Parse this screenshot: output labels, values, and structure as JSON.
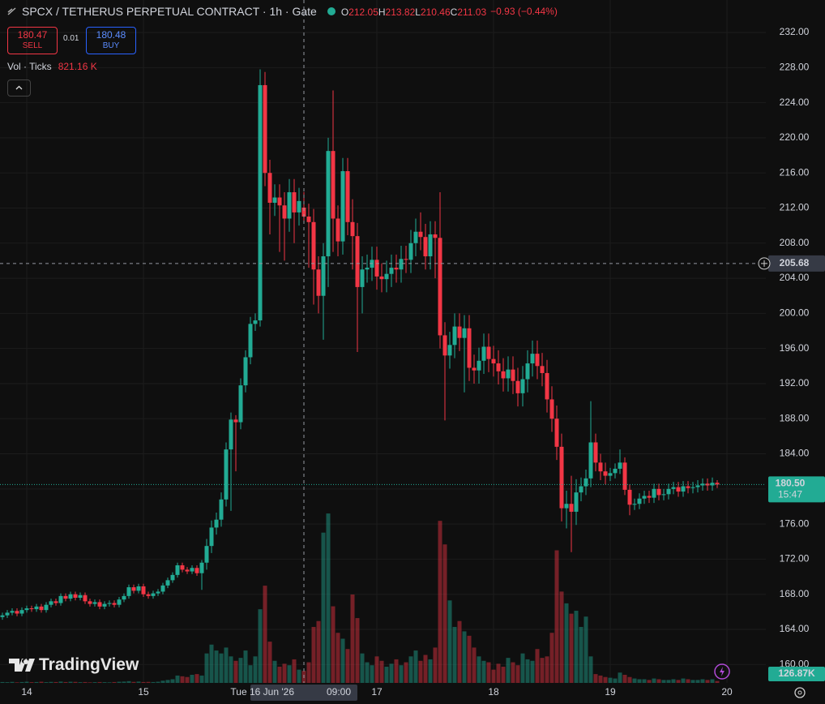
{
  "header": {
    "symbol": "SPCX / TETHERUS PERPETUAL CONTRACT · 1h · Gate",
    "ohlc_keys": [
      "O",
      "H",
      "L",
      "C"
    ],
    "change": "−0.93 (−0.44%)"
  },
  "trade": {
    "sell_price": "180.47",
    "sell": "SELL",
    "spread": "0.01",
    "buy_price": "180.48",
    "buy": "BUY"
  },
  "volume_title": "Vol · Ticks",
  "brand": "TradingView",
  "chart_data": {
    "type": "candlestick",
    "x": [
      -5,
      -4,
      -3,
      -2,
      -1,
      0,
      1,
      2,
      3,
      4,
      5,
      6,
      7,
      8,
      9,
      10,
      11,
      12,
      13,
      14,
      15,
      16,
      17,
      18,
      19,
      20,
      21,
      22,
      23,
      24,
      25,
      26,
      27,
      28,
      29,
      30,
      31,
      32,
      33,
      34,
      35,
      36,
      37,
      38,
      39,
      40,
      41,
      42,
      43,
      44,
      45,
      46,
      47,
      48,
      49,
      50,
      51,
      52,
      53,
      54,
      55,
      56,
      57,
      58,
      59,
      60,
      61,
      62,
      63,
      64,
      65,
      66,
      67,
      68,
      69,
      70,
      71,
      72,
      73,
      74,
      75,
      76,
      77,
      78,
      79,
      80,
      81,
      82,
      83,
      84,
      85,
      86,
      87,
      88,
      89,
      90,
      91,
      92,
      93,
      94,
      95,
      96,
      97,
      98,
      99,
      100,
      101,
      102,
      103,
      104,
      105,
      106,
      107,
      108,
      109,
      110,
      111,
      112,
      113,
      114,
      115,
      116,
      117,
      118,
      119,
      120,
      121,
      122,
      123,
      124,
      125,
      126,
      127,
      128,
      129,
      130,
      131,
      132,
      133,
      134,
      135,
      136,
      137,
      138,
      139,
      140,
      141,
      142
    ],
    "open": [
      165.4,
      165.6,
      165.9,
      166.1,
      165.8,
      166.2,
      166.4,
      166.3,
      166.6,
      166.2,
      166.8,
      167.2,
      167.0,
      167.8,
      167.5,
      168.0,
      167.6,
      167.9,
      167.2,
      166.9,
      167.1,
      166.6,
      166.9,
      167.0,
      166.8,
      167.4,
      167.8,
      168.8,
      168.4,
      168.9,
      168.0,
      167.8,
      168.1,
      168.3,
      169.0,
      169.6,
      170.2,
      171.3,
      170.8,
      170.6,
      171.0,
      170.4,
      171.6,
      173.5,
      175.6,
      176.5,
      178.8,
      184.5,
      187.9,
      187.6,
      191.8,
      195.0,
      198.8,
      199.2,
      226.0,
      216.0,
      212.6,
      213.2,
      212.3,
      210.8,
      213.8,
      211.5,
      212.05,
      211.03,
      210.4,
      205.0,
      202.0,
      206.5,
      218.5,
      210.8,
      208.2,
      216.2,
      210.4,
      208.8,
      203.0,
      205.0,
      205.2,
      206.1,
      204.2,
      203.9,
      204.5,
      205.2,
      205.0,
      206.2,
      206.1,
      208.0,
      209.3,
      208.7,
      206.5,
      209.0,
      208.6,
      197.5,
      195.2,
      196.4,
      198.5,
      197.2,
      198.3,
      193.8,
      193.5,
      194.6,
      196.2,
      194.8,
      194.3,
      193.4,
      192.6,
      193.6,
      192.3,
      190.9,
      192.5,
      194.3,
      195.4,
      194.0,
      193.2,
      190.2,
      188.0,
      184.8,
      177.8,
      178.3,
      177.4,
      179.6,
      180.3,
      181.2,
      185.3,
      183.0,
      182.0,
      181.5,
      181.8,
      182.3,
      183.0,
      179.9,
      178.2,
      178.3,
      178.9,
      179.2,
      179.0,
      180.0,
      179.3,
      179.4,
      180.0,
      180.2,
      179.7,
      180.3,
      180.1,
      180.2,
      180.4,
      180.6,
      180.4,
      180.7
    ],
    "high": [
      165.9,
      166.2,
      166.4,
      166.4,
      166.5,
      166.7,
      166.7,
      166.9,
      166.9,
      167.1,
      167.5,
      167.5,
      168.1,
      168.1,
      168.3,
      168.3,
      168.2,
      168.2,
      167.5,
      167.4,
      167.4,
      167.2,
      167.3,
      167.3,
      167.7,
      168.1,
      169.1,
      169.1,
      169.2,
      169.2,
      168.3,
      168.4,
      168.6,
      169.3,
      169.9,
      170.5,
      171.6,
      171.6,
      171.1,
      171.3,
      171.3,
      171.9,
      174.3,
      176.4,
      177.3,
      179.6,
      185.3,
      188.7,
      188.4,
      192.6,
      195.8,
      199.6,
      200.0,
      227.8,
      227.5,
      217.5,
      214.7,
      214.7,
      213.8,
      215.3,
      215.3,
      214.3,
      213.82,
      212.5,
      211.9,
      206.5,
      208.0,
      220.0,
      225.4,
      212.3,
      217.7,
      217.7,
      213.0,
      210.3,
      206.5,
      206.7,
      207.6,
      207.6,
      205.7,
      206.0,
      206.7,
      206.7,
      207.7,
      207.7,
      209.5,
      210.8,
      211.5,
      210.2,
      210.5,
      210.5,
      213.8,
      199.0,
      197.9,
      200.0,
      200.0,
      199.8,
      199.8,
      195.3,
      196.1,
      197.7,
      197.7,
      196.3,
      195.8,
      194.9,
      195.1,
      195.1,
      193.8,
      194.0,
      195.8,
      196.9,
      196.9,
      195.5,
      194.7,
      191.7,
      189.5,
      186.3,
      179.8,
      181.5,
      181.1,
      181.3,
      182.2,
      190.0,
      186.3,
      184.0,
      183.0,
      182.4,
      182.9,
      184.5,
      183.6,
      180.5,
      178.9,
      179.5,
      179.8,
      179.8,
      180.6,
      180.6,
      180.0,
      180.6,
      180.8,
      180.8,
      180.9,
      180.9,
      180.8,
      181.0,
      181.2,
      181.2,
      181.3,
      181.0
    ],
    "low": [
      165.1,
      165.3,
      165.6,
      165.5,
      165.5,
      165.9,
      166.0,
      166.0,
      165.9,
      165.9,
      166.5,
      166.7,
      166.7,
      167.2,
      167.2,
      167.3,
      167.3,
      166.9,
      166.6,
      166.6,
      166.3,
      166.3,
      166.6,
      166.5,
      166.5,
      167.1,
      167.5,
      168.1,
      168.1,
      167.7,
      167.5,
      167.5,
      167.8,
      168.0,
      168.7,
      169.3,
      169.9,
      170.5,
      170.3,
      170.3,
      170.1,
      168.5,
      170.8,
      172.7,
      174.8,
      175.7,
      178.0,
      177.5,
      182.0,
      186.8,
      191.0,
      194.2,
      198.0,
      198.5,
      214.5,
      209.0,
      211.1,
      207.0,
      206.0,
      209.3,
      208.0,
      210.0,
      210.46,
      205.2,
      201.0,
      200.0,
      197.0,
      203.0,
      207.0,
      206.5,
      206.7,
      208.9,
      205.0,
      195.6,
      200.0,
      203.5,
      203.7,
      202.7,
      202.4,
      202.4,
      203.0,
      203.5,
      203.5,
      204.6,
      204.6,
      206.5,
      207.2,
      205.0,
      205.0,
      204.0,
      196.0,
      187.8,
      193.7,
      194.9,
      195.7,
      191.0,
      192.3,
      192.0,
      192.0,
      193.1,
      193.3,
      192.8,
      191.9,
      191.1,
      191.1,
      190.8,
      189.4,
      189.4,
      191.0,
      192.8,
      192.5,
      191.7,
      188.7,
      186.5,
      183.3,
      176.3,
      175.5,
      172.8,
      175.9,
      178.6,
      179.3,
      180.2,
      182.0,
      181.0,
      180.5,
      180.9,
      181.2,
      181.7,
      179.3,
      177.0,
      177.6,
      177.7,
      178.3,
      178.4,
      178.4,
      178.7,
      178.7,
      178.8,
      179.4,
      179.1,
      179.1,
      179.5,
      179.5,
      179.6,
      179.8,
      179.8,
      179.8,
      180.1
    ],
    "close": [
      165.6,
      165.9,
      166.1,
      165.8,
      166.2,
      166.4,
      166.3,
      166.6,
      166.2,
      166.8,
      167.2,
      167.0,
      167.8,
      167.5,
      168.0,
      167.6,
      167.9,
      167.2,
      166.9,
      167.1,
      166.6,
      166.9,
      167.0,
      166.8,
      167.4,
      167.8,
      168.8,
      168.4,
      168.9,
      168.0,
      167.8,
      168.1,
      168.3,
      169.0,
      169.6,
      170.2,
      171.3,
      170.8,
      170.6,
      171.0,
      170.4,
      171.6,
      173.5,
      175.6,
      176.5,
      178.8,
      184.5,
      187.9,
      187.6,
      191.8,
      195.0,
      198.8,
      199.2,
      226.0,
      216.0,
      212.6,
      213.2,
      212.3,
      210.8,
      213.8,
      211.5,
      212.8,
      211.03,
      210.4,
      205.0,
      202.0,
      206.5,
      218.5,
      210.8,
      208.2,
      216.2,
      210.4,
      208.8,
      203.0,
      205.0,
      205.2,
      206.1,
      204.2,
      203.9,
      204.5,
      205.2,
      205.0,
      206.2,
      206.1,
      208.0,
      209.3,
      208.7,
      206.5,
      209.0,
      208.6,
      197.5,
      195.2,
      196.4,
      198.5,
      197.2,
      198.3,
      193.8,
      193.5,
      194.6,
      196.2,
      194.8,
      194.3,
      193.4,
      192.6,
      193.6,
      192.3,
      190.9,
      192.5,
      194.3,
      195.4,
      194.0,
      193.2,
      190.2,
      188.0,
      184.8,
      177.8,
      178.3,
      177.4,
      179.6,
      180.3,
      181.2,
      185.3,
      183.0,
      182.0,
      181.5,
      181.8,
      182.3,
      183.0,
      179.9,
      178.2,
      178.3,
      178.9,
      179.2,
      179.0,
      180.0,
      179.3,
      179.4,
      180.0,
      180.2,
      179.7,
      180.3,
      180.1,
      180.2,
      180.4,
      180.6,
      180.4,
      180.7,
      180.5
    ],
    "volume": [
      60000,
      50000,
      70000,
      40000,
      60000,
      80000,
      50000,
      60000,
      80000,
      50000,
      70000,
      60000,
      90000,
      60000,
      80000,
      70000,
      50000,
      60000,
      40000,
      50000,
      60000,
      50000,
      40000,
      60000,
      80000,
      90000,
      120000,
      70000,
      90000,
      60000,
      70000,
      60000,
      80000,
      150000,
      200000,
      250000,
      500000,
      450000,
      400000,
      550000,
      600000,
      500000,
      2000000,
      2600000,
      2200000,
      2000000,
      2400000,
      1800000,
      1500000,
      1700000,
      2200000,
      1200000,
      1800000,
      5000000,
      6600000,
      2800000,
      1500000,
      1100000,
      1300000,
      1200000,
      1600000,
      900000,
      821160,
      1400000,
      3800000,
      4200000,
      10200000,
      11500000,
      5200000,
      3400000,
      3000000,
      2300000,
      6000000,
      4400000,
      2000000,
      1400000,
      1200000,
      1800000,
      1500000,
      1100000,
      1300000,
      1600000,
      1200000,
      1400000,
      1800000,
      2200000,
      1500000,
      1900000,
      1600000,
      2400000,
      11000000,
      9400000,
      5600000,
      3800000,
      4200000,
      3500000,
      3200000,
      2400000,
      1800000,
      1500000,
      1400000,
      900000,
      1300000,
      1100000,
      1700000,
      1400000,
      1200000,
      2000000,
      1600000,
      1500000,
      2300000,
      1700000,
      1800000,
      3400000,
      9000000,
      6200000,
      5400000,
      4700000,
      4900000,
      3800000,
      4500000,
      1800000,
      600000,
      500000,
      400000,
      350000,
      300000,
      700000,
      550000,
      400000,
      300000,
      250000,
      250000,
      200000,
      300000,
      250000,
      200000,
      200000,
      250000,
      200000,
      300000,
      250000,
      200000,
      200000,
      250000,
      200000,
      250000,
      126870
    ],
    "volume_labels": {
      "62": "821.16 K",
      "147": "126.87K"
    },
    "up_color": "#22ab94",
    "down_color": "#f23645",
    "xlim": [
      -5.5,
      152
    ],
    "xticks": [
      {
        "value": 0,
        "label": "14"
      },
      {
        "value": 24,
        "label": "15"
      },
      {
        "value": 72,
        "label": "17"
      },
      {
        "value": 96,
        "label": "18"
      },
      {
        "value": 120,
        "label": "19"
      },
      {
        "value": 144,
        "label": "20"
      }
    ],
    "ylim": [
      157.9,
      235.7
    ],
    "yticks": [
      {
        "value": 160,
        "label": "160.00"
      },
      {
        "value": 164,
        "label": "164.00"
      },
      {
        "value": 168,
        "label": "168.00"
      },
      {
        "value": 172,
        "label": "172.00"
      },
      {
        "value": 176,
        "label": "176.00"
      },
      {
        "value": 180,
        "label": "180.00"
      },
      {
        "value": 184,
        "label": "184.00"
      },
      {
        "value": 188,
        "label": "188.00"
      },
      {
        "value": 192,
        "label": "192.00"
      },
      {
        "value": 196,
        "label": "196.00"
      },
      {
        "value": 200,
        "label": "200.00"
      },
      {
        "value": 204,
        "label": "204.00"
      },
      {
        "value": 208,
        "label": "208.00"
      },
      {
        "value": 212,
        "label": "212.00"
      },
      {
        "value": 216,
        "label": "216.00"
      },
      {
        "value": 220,
        "label": "220.00"
      },
      {
        "value": 224,
        "label": "224.00"
      },
      {
        "value": 228,
        "label": "228.00"
      },
      {
        "value": 232,
        "label": "232.00"
      }
    ],
    "volume_ylim": [
      0,
      12000000
    ],
    "grid": true,
    "crosshair": {
      "x": 57,
      "price": 205.68,
      "date": "Tue 16 Jun '26",
      "time": "09:00"
    },
    "last_price_label": "180.50",
    "countdown": "15:47"
  }
}
